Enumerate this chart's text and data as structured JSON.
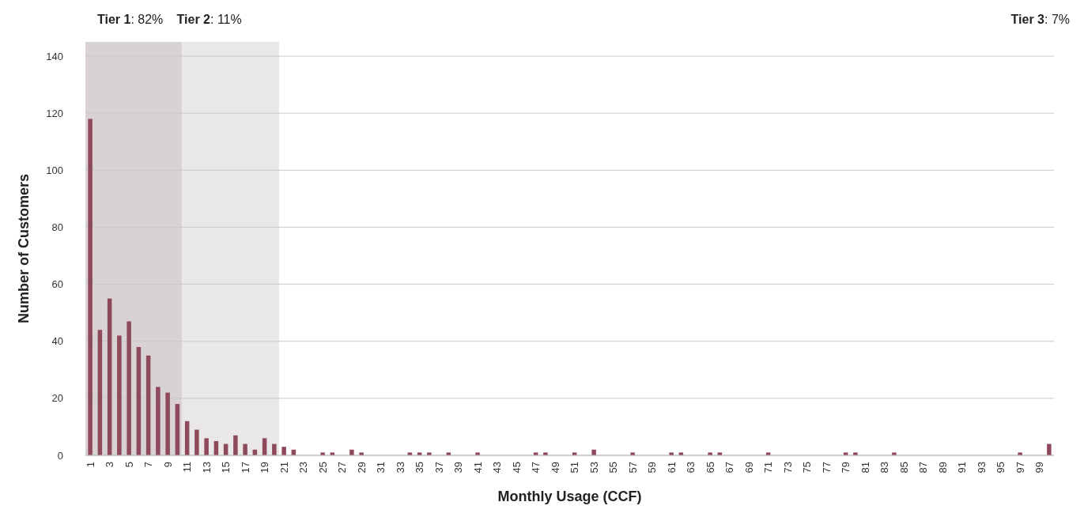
{
  "chart_data": {
    "type": "bar",
    "xlabel": "Monthly Usage (CCF)",
    "ylabel": "Number of Customers",
    "x": [
      1,
      2,
      3,
      4,
      5,
      6,
      7,
      8,
      9,
      10,
      11,
      12,
      13,
      14,
      15,
      16,
      17,
      18,
      19,
      20,
      21,
      22,
      23,
      24,
      25,
      26,
      27,
      28,
      29,
      30,
      31,
      32,
      33,
      34,
      35,
      36,
      37,
      38,
      39,
      40,
      41,
      42,
      43,
      44,
      45,
      46,
      47,
      48,
      49,
      50,
      51,
      52,
      53,
      54,
      55,
      56,
      57,
      58,
      59,
      60,
      61,
      62,
      63,
      64,
      65,
      66,
      67,
      68,
      69,
      70,
      71,
      72,
      73,
      74,
      75,
      76,
      77,
      78,
      79,
      80,
      81,
      82,
      83,
      84,
      85,
      86,
      87,
      88,
      89,
      90,
      91,
      92,
      93,
      94,
      95,
      96,
      97,
      98,
      99,
      100
    ],
    "values": [
      118,
      44,
      55,
      42,
      47,
      38,
      35,
      24,
      22,
      18,
      12,
      9,
      6,
      5,
      4,
      7,
      4,
      2,
      6,
      4,
      3,
      2,
      0,
      0,
      1,
      1,
      0,
      2,
      1,
      0,
      0,
      0,
      0,
      1,
      1,
      1,
      0,
      1,
      0,
      0,
      1,
      0,
      0,
      0,
      0,
      0,
      1,
      1,
      0,
      0,
      1,
      0,
      2,
      0,
      0,
      0,
      1,
      0,
      0,
      0,
      1,
      1,
      0,
      0,
      1,
      1,
      0,
      0,
      0,
      0,
      1,
      0,
      0,
      0,
      0,
      0,
      0,
      0,
      1,
      1,
      0,
      0,
      0,
      1,
      0,
      0,
      0,
      0,
      0,
      0,
      0,
      0,
      0,
      0,
      0,
      0,
      1,
      0,
      0,
      4
    ],
    "color": "#8e4a5a",
    "xlim": [
      0.5,
      100.5
    ],
    "xticks": [
      1,
      3,
      5,
      7,
      9,
      11,
      13,
      15,
      17,
      19,
      21,
      23,
      25,
      27,
      29,
      31,
      33,
      35,
      37,
      39,
      41,
      43,
      45,
      47,
      49,
      51,
      53,
      55,
      57,
      59,
      61,
      63,
      65,
      67,
      69,
      71,
      73,
      75,
      77,
      79,
      81,
      83,
      85,
      87,
      89,
      91,
      93,
      95,
      97,
      99
    ],
    "ylim": [
      0,
      145
    ],
    "yticks": [
      0,
      20,
      40,
      60,
      80,
      100,
      120,
      140
    ],
    "grid": "y",
    "bands": [
      {
        "axis": "x",
        "from": 0.5,
        "to": 10.5,
        "color": "#d8d2d5"
      },
      {
        "axis": "x",
        "from": 10.5,
        "to": 20.5,
        "color": "#e9e7e8"
      }
    ],
    "annotations": [
      "Tier 1: 82%",
      "Tier 2: 11%",
      "Tier 3: 7%"
    ]
  }
}
